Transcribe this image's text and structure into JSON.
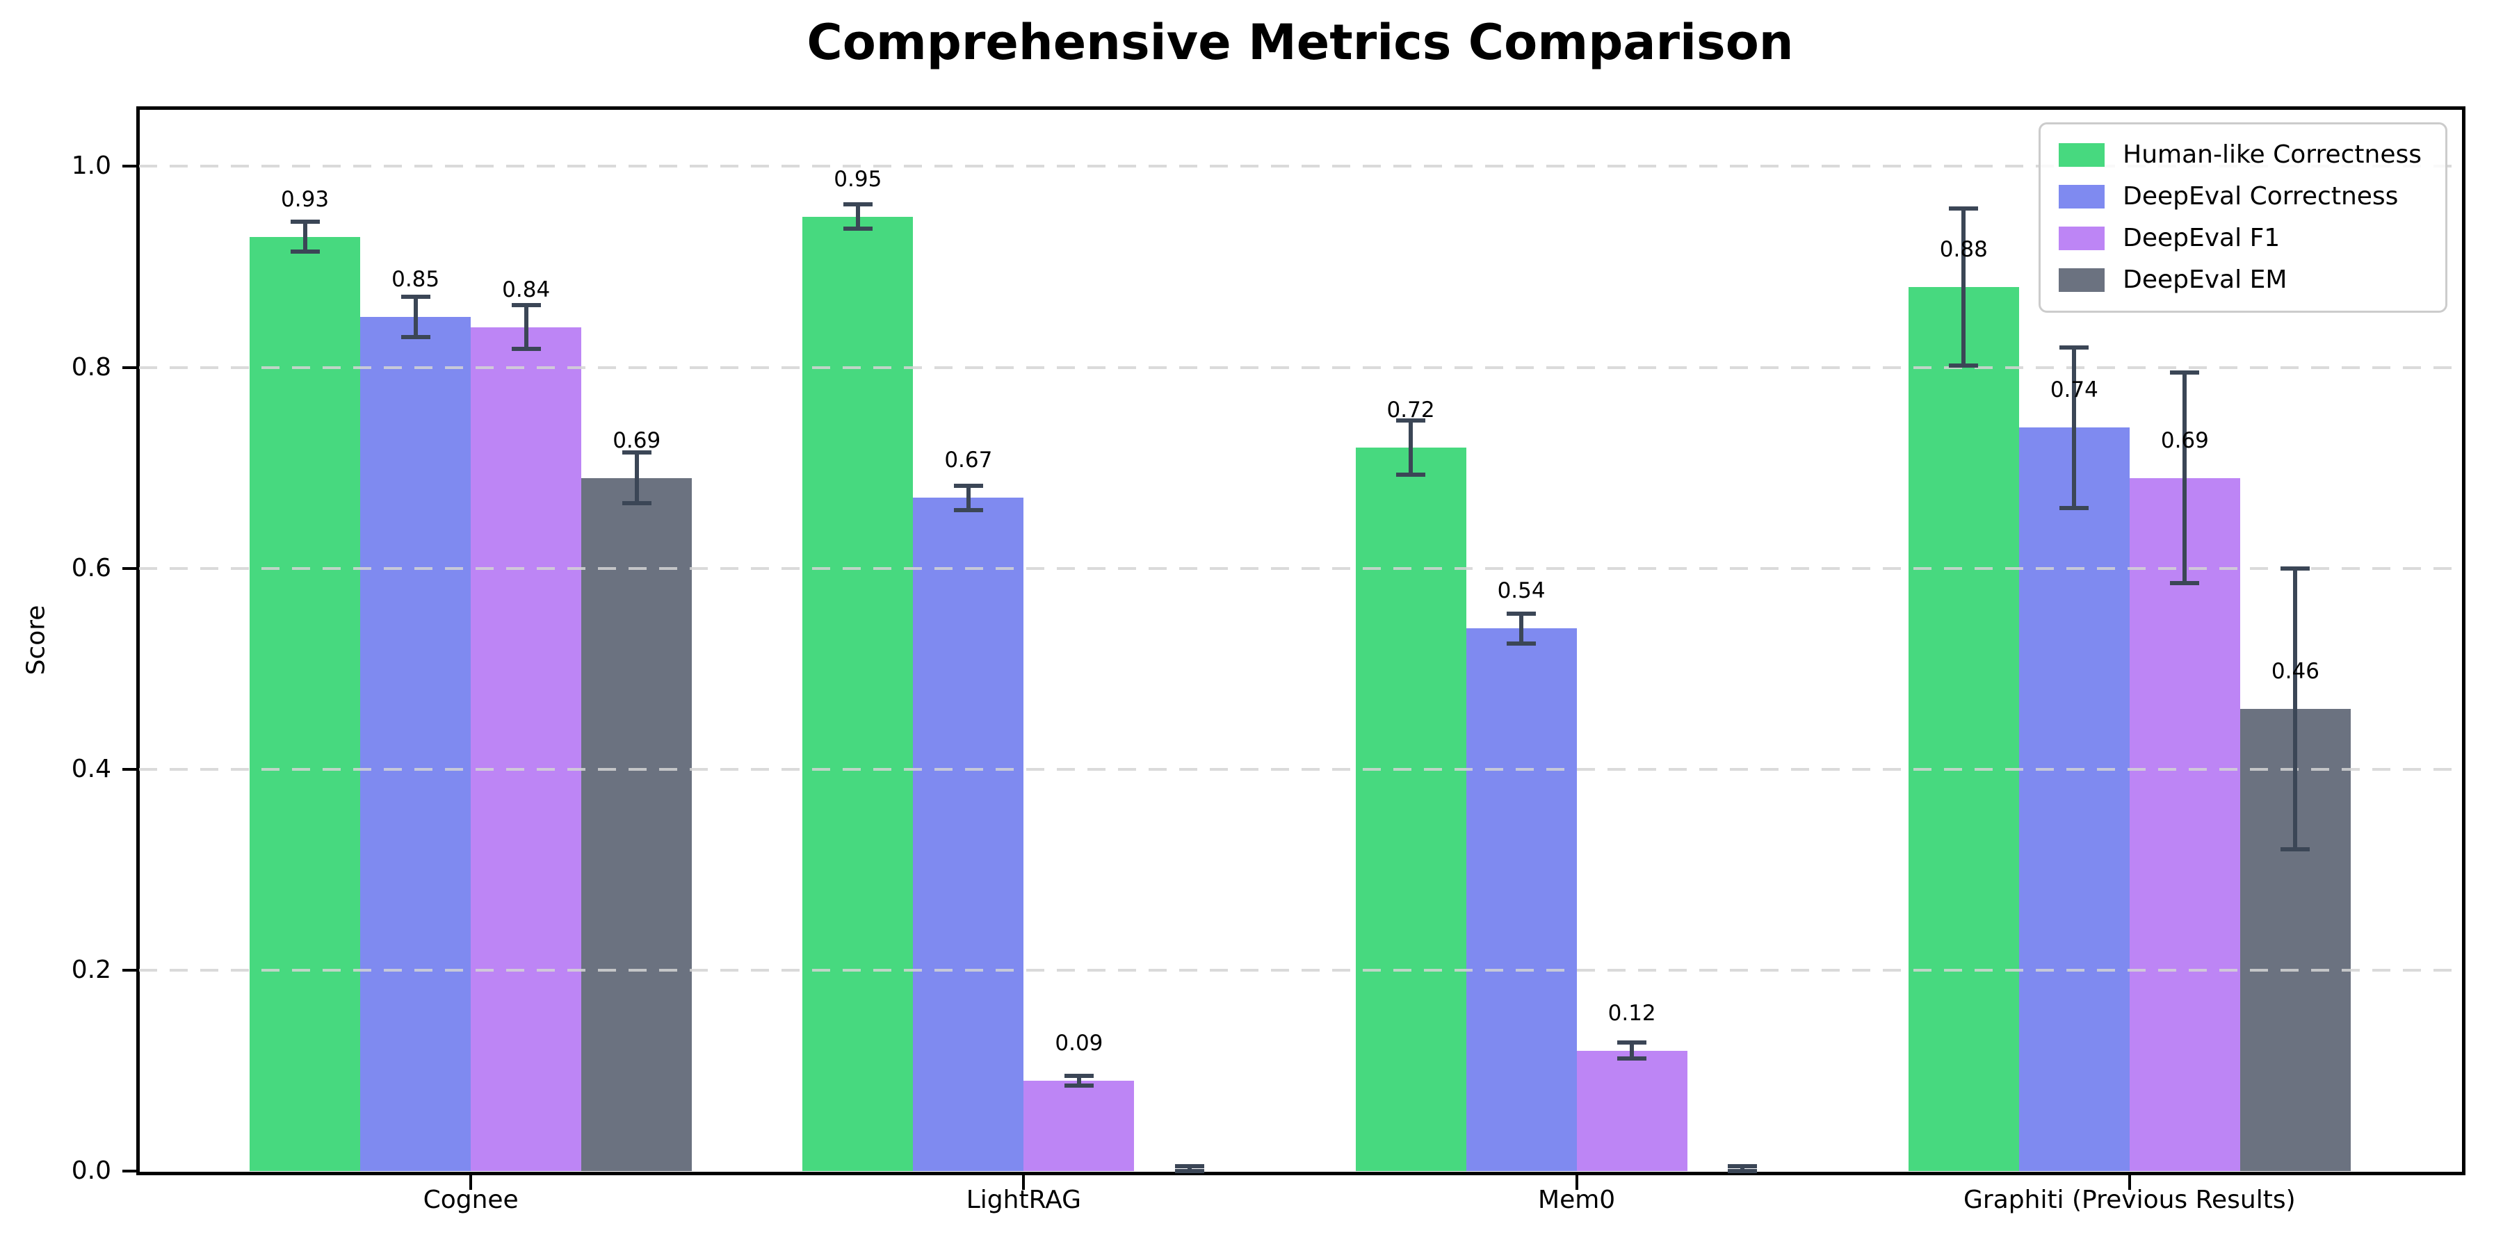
{
  "title": "Comprehensive Metrics Comparison",
  "axes": {
    "ylabel": "Score",
    "ytick_labels": [
      "0.0",
      "0.2",
      "0.4",
      "0.6",
      "0.8",
      "1.0"
    ]
  },
  "legend": {
    "entries": [
      "Human-like Correctness",
      "DeepEval Correctness",
      "DeepEval F1",
      "DeepEval EM"
    ]
  },
  "colors": {
    "human_like": "#47d97f",
    "deepeval_correctness": "#7f8af0",
    "deepeval_f1": "#bd85f5",
    "deepeval_em": "#6b7280",
    "error_bar": "#3b4656",
    "gridline": "#d4d4d4",
    "axis": "#000000",
    "legend_border": "#cccccc",
    "background": "#ffffff"
  },
  "chart_data": {
    "type": "bar",
    "title": "Comprehensive Metrics Comparison",
    "xlabel": "",
    "ylabel": "Score",
    "categories": [
      "Cognee",
      "LightRAG",
      "Mem0",
      "Graphiti (Previous Results)"
    ],
    "series": [
      {
        "name": "Human-like Correctness",
        "color": "#47d97f",
        "values": [
          0.93,
          0.95,
          0.72,
          0.88
        ],
        "errors": [
          0.015,
          0.012,
          0.027,
          0.078
        ],
        "labels": [
          "0.93",
          "0.95",
          "0.72",
          "0.88"
        ]
      },
      {
        "name": "DeepEval Correctness",
        "color": "#7f8af0",
        "values": [
          0.85,
          0.67,
          0.54,
          0.74
        ],
        "errors": [
          0.02,
          0.012,
          0.015,
          0.08
        ],
        "labels": [
          "0.85",
          "0.67",
          "0.54",
          "0.74"
        ]
      },
      {
        "name": "DeepEval F1",
        "color": "#bd85f5",
        "values": [
          0.84,
          0.09,
          0.12,
          0.69
        ],
        "errors": [
          0.022,
          0.005,
          0.008,
          0.105
        ],
        "labels": [
          "0.84",
          "0.09",
          "0.12",
          "0.69"
        ]
      },
      {
        "name": "DeepEval EM",
        "color": "#6b7280",
        "values": [
          0.69,
          0.0,
          0.0,
          0.46
        ],
        "errors": [
          0.025,
          0.005,
          0.005,
          0.14
        ],
        "labels": [
          "0.69",
          null,
          null,
          "0.46"
        ]
      }
    ],
    "yticks": [
      0.0,
      0.2,
      0.4,
      0.6,
      0.8,
      1.0
    ],
    "ylim": [
      0,
      1.057
    ],
    "grid": "horizontal-dashed",
    "legend_position": "upper right",
    "bar_value_labels": true,
    "error_bars": true
  }
}
